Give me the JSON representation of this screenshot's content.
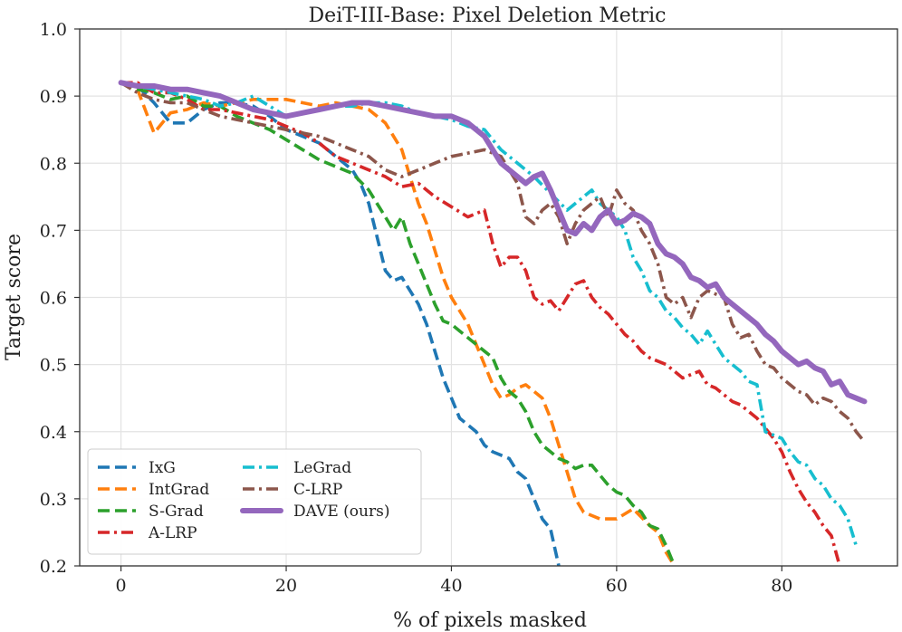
{
  "chart_data": {
    "type": "line",
    "title": "DeiT-III-Base: Pixel Deletion Metric",
    "xlabel": "% of pixels masked",
    "ylabel": "Target score",
    "xlim": [
      -5,
      94
    ],
    "ylim": [
      0.2,
      1.0
    ],
    "xticks": [
      0,
      20,
      40,
      60,
      80
    ],
    "yticks": [
      0.2,
      0.3,
      0.4,
      0.5,
      0.6,
      0.7,
      0.8,
      0.9,
      1.0
    ],
    "grid": true,
    "legend_position": "lower-left",
    "series": [
      {
        "name": "IxG",
        "color": "#1f77b4",
        "style": "dashed",
        "x": [
          0,
          2,
          4,
          6,
          8,
          10,
          12,
          14,
          16,
          18,
          20,
          22,
          24,
          26,
          28,
          29,
          30,
          31,
          32,
          33,
          34,
          35,
          36,
          37,
          38,
          39,
          40,
          41,
          42,
          43,
          44,
          45,
          46,
          47,
          48,
          49,
          50,
          51,
          52,
          53
        ],
        "y": [
          0.92,
          0.915,
          0.89,
          0.86,
          0.86,
          0.88,
          0.89,
          0.89,
          0.885,
          0.87,
          0.85,
          0.84,
          0.83,
          0.81,
          0.79,
          0.77,
          0.74,
          0.69,
          0.64,
          0.625,
          0.63,
          0.61,
          0.59,
          0.56,
          0.52,
          0.48,
          0.45,
          0.42,
          0.41,
          0.4,
          0.38,
          0.37,
          0.365,
          0.36,
          0.34,
          0.33,
          0.3,
          0.27,
          0.255,
          0.2
        ]
      },
      {
        "name": "IntGrad",
        "color": "#ff7f0e",
        "style": "dashed",
        "x": [
          0,
          2,
          4,
          6,
          8,
          10,
          12,
          14,
          16,
          18,
          20,
          22,
          24,
          26,
          28,
          30,
          32,
          34,
          35,
          36,
          37,
          38,
          39,
          40,
          41,
          42,
          43,
          44,
          45,
          46,
          47,
          48,
          49,
          50,
          51,
          52,
          53,
          54,
          55,
          56,
          58,
          60,
          62,
          64,
          65,
          66,
          67
        ],
        "y": [
          0.92,
          0.91,
          0.845,
          0.875,
          0.88,
          0.89,
          0.885,
          0.89,
          0.895,
          0.895,
          0.895,
          0.89,
          0.885,
          0.89,
          0.885,
          0.88,
          0.86,
          0.82,
          0.78,
          0.74,
          0.71,
          0.67,
          0.63,
          0.6,
          0.58,
          0.56,
          0.53,
          0.5,
          0.47,
          0.45,
          0.455,
          0.465,
          0.47,
          0.46,
          0.45,
          0.42,
          0.38,
          0.34,
          0.3,
          0.28,
          0.27,
          0.27,
          0.285,
          0.26,
          0.25,
          0.22,
          0.2
        ]
      },
      {
        "name": "S-Grad",
        "color": "#2ca02c",
        "style": "dashed",
        "x": [
          0,
          2,
          4,
          6,
          8,
          10,
          12,
          14,
          16,
          18,
          20,
          22,
          24,
          26,
          28,
          30,
          32,
          33,
          34,
          35,
          36,
          37,
          38,
          39,
          40,
          41,
          42,
          43,
          44,
          45,
          46,
          47,
          48,
          49,
          50,
          51,
          52,
          53,
          54,
          55,
          56,
          57,
          58,
          59,
          60,
          61,
          62,
          63,
          64,
          65,
          66,
          67
        ],
        "y": [
          0.92,
          0.91,
          0.905,
          0.895,
          0.9,
          0.885,
          0.885,
          0.87,
          0.86,
          0.85,
          0.835,
          0.82,
          0.805,
          0.795,
          0.785,
          0.76,
          0.72,
          0.7,
          0.72,
          0.68,
          0.65,
          0.62,
          0.59,
          0.565,
          0.56,
          0.55,
          0.54,
          0.53,
          0.52,
          0.51,
          0.48,
          0.46,
          0.45,
          0.43,
          0.4,
          0.38,
          0.37,
          0.36,
          0.355,
          0.345,
          0.35,
          0.35,
          0.335,
          0.32,
          0.31,
          0.305,
          0.29,
          0.28,
          0.26,
          0.255,
          0.23,
          0.2
        ]
      },
      {
        "name": "A-LRP",
        "color": "#d62728",
        "style": "dashdot",
        "x": [
          0,
          2,
          4,
          6,
          8,
          10,
          12,
          14,
          16,
          18,
          20,
          22,
          24,
          26,
          28,
          30,
          32,
          34,
          36,
          38,
          40,
          42,
          44,
          45,
          46,
          47,
          48,
          49,
          50,
          51,
          52,
          53,
          54,
          55,
          56,
          57,
          58,
          59,
          60,
          61,
          62,
          63,
          64,
          65,
          66,
          67,
          68,
          69,
          70,
          71,
          72,
          73,
          74,
          75,
          76,
          77,
          78,
          79,
          80,
          81,
          82,
          83,
          84,
          85,
          86,
          87
        ],
        "y": [
          0.92,
          0.92,
          0.905,
          0.905,
          0.895,
          0.88,
          0.88,
          0.875,
          0.87,
          0.865,
          0.855,
          0.845,
          0.83,
          0.81,
          0.8,
          0.79,
          0.78,
          0.765,
          0.77,
          0.75,
          0.735,
          0.72,
          0.73,
          0.68,
          0.645,
          0.66,
          0.66,
          0.64,
          0.6,
          0.59,
          0.595,
          0.58,
          0.6,
          0.62,
          0.625,
          0.6,
          0.585,
          0.575,
          0.56,
          0.545,
          0.535,
          0.52,
          0.51,
          0.505,
          0.5,
          0.49,
          0.48,
          0.485,
          0.49,
          0.47,
          0.465,
          0.455,
          0.445,
          0.44,
          0.43,
          0.42,
          0.405,
          0.39,
          0.37,
          0.34,
          0.315,
          0.295,
          0.28,
          0.26,
          0.245,
          0.2
        ]
      },
      {
        "name": "LeGrad",
        "color": "#17becf",
        "style": "dashdot",
        "x": [
          0,
          2,
          4,
          6,
          8,
          10,
          12,
          14,
          16,
          18,
          20,
          22,
          24,
          26,
          28,
          30,
          32,
          34,
          36,
          38,
          40,
          42,
          44,
          46,
          48,
          50,
          52,
          54,
          55,
          56,
          57,
          58,
          59,
          60,
          61,
          62,
          63,
          64,
          65,
          66,
          67,
          68,
          69,
          70,
          71,
          72,
          73,
          74,
          75,
          76,
          77,
          78,
          79,
          80,
          81,
          82,
          83,
          84,
          85,
          86,
          87,
          88,
          89
        ],
        "y": [
          0.92,
          0.915,
          0.91,
          0.905,
          0.9,
          0.895,
          0.885,
          0.89,
          0.9,
          0.885,
          0.87,
          0.875,
          0.88,
          0.885,
          0.885,
          0.89,
          0.89,
          0.885,
          0.875,
          0.87,
          0.865,
          0.855,
          0.85,
          0.82,
          0.8,
          0.78,
          0.755,
          0.73,
          0.74,
          0.75,
          0.76,
          0.74,
          0.73,
          0.72,
          0.7,
          0.66,
          0.64,
          0.61,
          0.6,
          0.58,
          0.57,
          0.555,
          0.545,
          0.53,
          0.55,
          0.53,
          0.51,
          0.5,
          0.49,
          0.475,
          0.47,
          0.4,
          0.395,
          0.39,
          0.37,
          0.355,
          0.35,
          0.33,
          0.32,
          0.3,
          0.29,
          0.27,
          0.23
        ]
      },
      {
        "name": "C-LRP",
        "color": "#8c564b",
        "style": "dashdot",
        "x": [
          0,
          2,
          4,
          6,
          8,
          10,
          12,
          14,
          16,
          18,
          20,
          22,
          24,
          26,
          28,
          30,
          32,
          34,
          36,
          38,
          40,
          42,
          44,
          46,
          48,
          49,
          50,
          51,
          52,
          53,
          54,
          55,
          56,
          57,
          58,
          59,
          60,
          61,
          62,
          63,
          64,
          65,
          66,
          67,
          68,
          69,
          70,
          71,
          72,
          73,
          74,
          75,
          76,
          77,
          78,
          79,
          80,
          81,
          82,
          83,
          84,
          85,
          86,
          87,
          88,
          89,
          90
        ],
        "y": [
          0.92,
          0.905,
          0.895,
          0.89,
          0.89,
          0.88,
          0.87,
          0.865,
          0.86,
          0.855,
          0.85,
          0.845,
          0.84,
          0.83,
          0.82,
          0.81,
          0.79,
          0.78,
          0.79,
          0.8,
          0.81,
          0.815,
          0.82,
          0.81,
          0.77,
          0.72,
          0.71,
          0.73,
          0.74,
          0.72,
          0.68,
          0.71,
          0.73,
          0.74,
          0.75,
          0.72,
          0.76,
          0.74,
          0.73,
          0.7,
          0.68,
          0.65,
          0.6,
          0.59,
          0.6,
          0.57,
          0.6,
          0.61,
          0.605,
          0.6,
          0.56,
          0.54,
          0.545,
          0.52,
          0.5,
          0.495,
          0.48,
          0.47,
          0.46,
          0.455,
          0.44,
          0.45,
          0.445,
          0.43,
          0.42,
          0.4,
          0.385
        ]
      },
      {
        "name": "DAVE (ours)",
        "color": "#9467bd",
        "style": "solid",
        "x": [
          0,
          2,
          4,
          6,
          8,
          10,
          12,
          14,
          16,
          18,
          20,
          22,
          24,
          26,
          28,
          30,
          32,
          34,
          36,
          38,
          40,
          42,
          44,
          45,
          46,
          47,
          48,
          49,
          50,
          51,
          52,
          53,
          54,
          55,
          56,
          57,
          58,
          59,
          60,
          61,
          62,
          63,
          64,
          65,
          66,
          67,
          68,
          69,
          70,
          71,
          72,
          73,
          74,
          75,
          76,
          77,
          78,
          79,
          80,
          81,
          82,
          83,
          84,
          85,
          86,
          87,
          88,
          89,
          90
        ],
        "y": [
          0.92,
          0.915,
          0.915,
          0.91,
          0.91,
          0.905,
          0.9,
          0.89,
          0.88,
          0.875,
          0.87,
          0.875,
          0.88,
          0.885,
          0.89,
          0.89,
          0.885,
          0.88,
          0.875,
          0.87,
          0.87,
          0.86,
          0.84,
          0.82,
          0.8,
          0.79,
          0.78,
          0.77,
          0.78,
          0.785,
          0.76,
          0.73,
          0.7,
          0.695,
          0.71,
          0.7,
          0.72,
          0.73,
          0.71,
          0.715,
          0.725,
          0.72,
          0.71,
          0.68,
          0.665,
          0.66,
          0.65,
          0.63,
          0.625,
          0.615,
          0.62,
          0.6,
          0.59,
          0.58,
          0.57,
          0.56,
          0.545,
          0.535,
          0.52,
          0.51,
          0.5,
          0.505,
          0.495,
          0.49,
          0.47,
          0.475,
          0.455,
          0.45,
          0.445
        ]
      }
    ]
  }
}
